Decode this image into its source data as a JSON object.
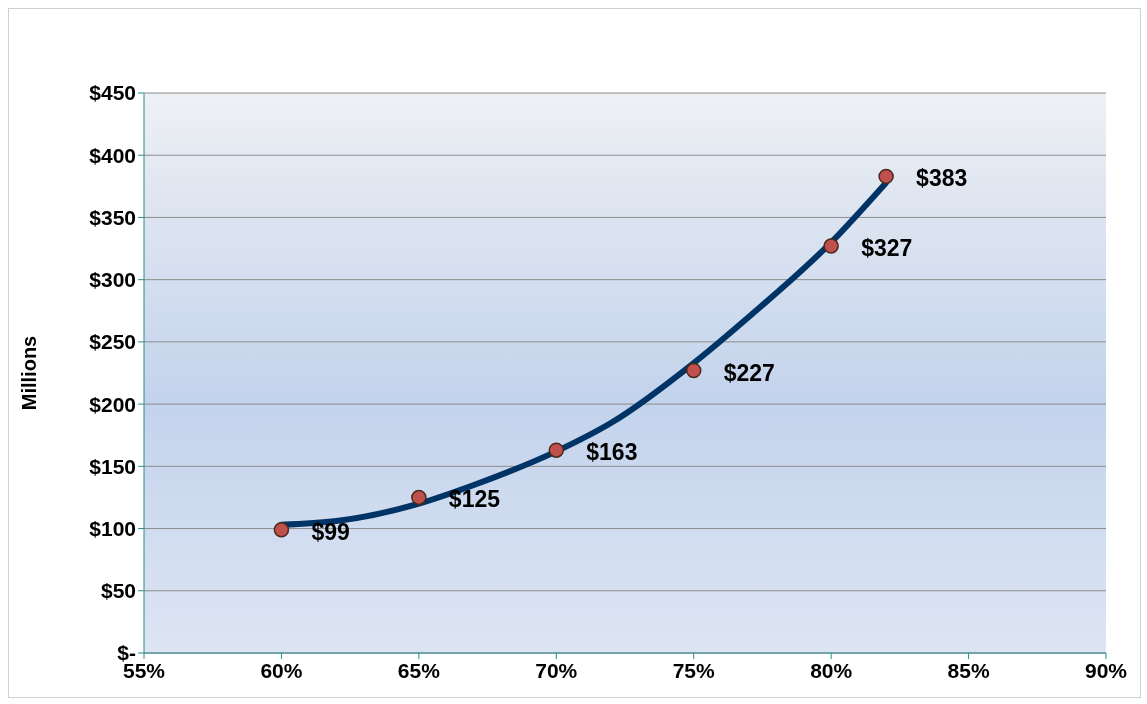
{
  "chart_data": {
    "type": "scatter",
    "ylabel": "Millions",
    "xlim": [
      55,
      90
    ],
    "xticks": [
      {
        "value": 55,
        "label": "55%"
      },
      {
        "value": 60,
        "label": "60%"
      },
      {
        "value": 65,
        "label": "65%"
      },
      {
        "value": 70,
        "label": "70%"
      },
      {
        "value": 75,
        "label": "75%"
      },
      {
        "value": 80,
        "label": "80%"
      },
      {
        "value": 85,
        "label": "85%"
      },
      {
        "value": 90,
        "label": "90%"
      }
    ],
    "ylim": [
      0,
      450
    ],
    "yticks": [
      {
        "value": 0,
        "label": "$-"
      },
      {
        "value": 50,
        "label": "$50"
      },
      {
        "value": 100,
        "label": "$100"
      },
      {
        "value": 150,
        "label": "$150"
      },
      {
        "value": 200,
        "label": "$200"
      },
      {
        "value": 250,
        "label": "$250"
      },
      {
        "value": 300,
        "label": "$300"
      },
      {
        "value": 350,
        "label": "$350"
      },
      {
        "value": 400,
        "label": "$400"
      },
      {
        "value": 450,
        "label": "$450"
      }
    ],
    "grid": "y",
    "series": [
      {
        "marker": "circle",
        "color": "#c0504d",
        "x": [
          60,
          65,
          70,
          75,
          80,
          82
        ],
        "values": [
          99,
          125,
          163,
          227,
          327,
          383
        ],
        "value_labels": [
          "$99",
          "$125",
          "$163",
          "$227",
          "$327",
          "$383"
        ]
      },
      {
        "type": "line",
        "marker": "none",
        "color": "#003366",
        "x": [
          60,
          62,
          65,
          67,
          70,
          72,
          75,
          77,
          80,
          82
        ],
        "values": [
          103,
          106,
          120,
          135,
          162,
          185,
          233,
          270,
          330,
          378
        ]
      }
    ]
  }
}
